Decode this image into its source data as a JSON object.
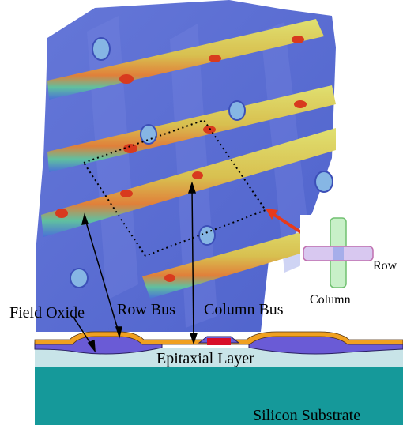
{
  "labels": {
    "field_oxide": "Field Oxide",
    "row_bus": "Row Bus",
    "column_bus": "Column Bus",
    "epitaxial_layer": "Epitaxial Layer",
    "silicon_substrate": "Silicon Substrate",
    "inset_row": "Row",
    "inset_column": "Column"
  },
  "colors": {
    "surface": "#5a6fd6",
    "bus_yellow": "#d8d860",
    "bus_red": "#d83a1e",
    "bus_orange": "#e8a040",
    "oxide_purple": "#6a5bd6",
    "epitaxial": "#c8e4e8",
    "substrate": "#15999a",
    "top_layer": "#f0a020",
    "pointer_arrow": "#e83a1c"
  }
}
